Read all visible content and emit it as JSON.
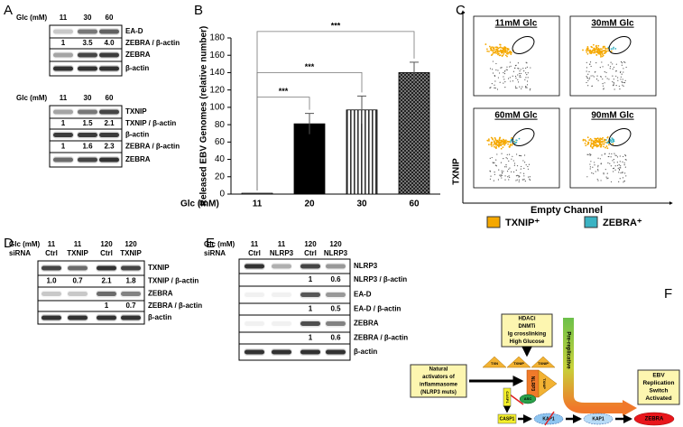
{
  "panel_labels": [
    "A",
    "B",
    "C",
    "D",
    "E",
    "F"
  ],
  "panel_a": {
    "blots": [
      {
        "header": "Glc (mM)",
        "lanes": [
          "11",
          "30",
          "60"
        ],
        "rows": [
          {
            "label": "EA-D"
          },
          {
            "label": "ZEBRA / β-actin",
            "values": [
              "1",
              "3.5",
              "4.0"
            ]
          },
          {
            "label": "ZEBRA"
          },
          {
            "label": "β-actin"
          }
        ]
      },
      {
        "header": "Glc (mM)",
        "lanes": [
          "11",
          "30",
          "60"
        ],
        "rows": [
          {
            "label": "TXNIP"
          },
          {
            "label": "TXNIP / β-actin",
            "values": [
              "1",
              "1.5",
              "2.1"
            ]
          },
          {
            "label": "β-actin"
          },
          {
            "label": "ZEBRA / β-actin",
            "values": [
              "1",
              "1.6",
              "2.3"
            ]
          },
          {
            "label": "ZEBRA"
          }
        ]
      }
    ]
  },
  "chart_data": {
    "type": "bar",
    "y_label": "Released EBV Genomes (relative number)",
    "x_label": "Glc (mM)",
    "categories": [
      "11",
      "20",
      "30",
      "60"
    ],
    "values": [
      1,
      81,
      97,
      140
    ],
    "errors": [
      0,
      12,
      16,
      12
    ],
    "colors": [
      "#ffffff",
      "#000000",
      "#ffffff",
      "#3a3a3a"
    ],
    "patterns": [
      null,
      null,
      "vertical-stripes",
      "checker"
    ],
    "significance": [
      null,
      "***",
      "***",
      "***"
    ],
    "ylim": [
      0,
      180
    ],
    "yticks": [
      0,
      20,
      40,
      60,
      80,
      100,
      120,
      140,
      160,
      180
    ]
  },
  "panel_c": {
    "titles": [
      "11mM Glc",
      "30mM Glc",
      "60mM Glc",
      "90mM Glc"
    ],
    "y_label": "TXNIP",
    "x_label": "Empty Channel",
    "legend": [
      {
        "label": "TXNIP⁺",
        "color": "#f5a800"
      },
      {
        "label": "ZEBRA⁺",
        "color": "#3bb3c3"
      }
    ]
  },
  "panel_d": {
    "glc_label": "Glc (mM)",
    "sirna_label": "siRNA",
    "glc": [
      "11",
      "11",
      "120",
      "120"
    ],
    "sirna": [
      "Ctrl",
      "TXNIP",
      "Ctrl",
      "TXNIP"
    ],
    "rows": [
      {
        "label": "TXNIP"
      },
      {
        "label": "TXNIP / β-actin",
        "values": [
          "1.0",
          "0.7",
          "2.1",
          "1.8"
        ]
      },
      {
        "label": "ZEBRA"
      },
      {
        "label": "ZEBRA / β-actin",
        "values": [
          null,
          null,
          "1",
          "0.7"
        ]
      },
      {
        "label": "β-actin"
      }
    ]
  },
  "panel_e": {
    "glc_label": "Glc (mM)",
    "sirna_label": "siRNA",
    "glc": [
      "11",
      "11",
      "120",
      "120"
    ],
    "sirna": [
      "Ctrl",
      "NLRP3",
      "Ctrl",
      "NLRP3"
    ],
    "rows": [
      {
        "label": "NLRP3"
      },
      {
        "label": "NLRP3 / β-actin",
        "values": [
          null,
          null,
          "1",
          "0.6"
        ]
      },
      {
        "label": "EA-D"
      },
      {
        "label": "EA-D / β-actin",
        "values": [
          null,
          null,
          "1",
          "0.5"
        ]
      },
      {
        "label": "ZEBRA"
      },
      {
        "label": "ZEBRA / β-actin",
        "values": [
          null,
          null,
          "1",
          "0.6"
        ]
      },
      {
        "label": "β-actin"
      }
    ]
  },
  "panel_f": {
    "stimuli": [
      "HDACi",
      "DNMTi",
      "Ig crosslinking",
      "High Glucose"
    ],
    "complex": [
      "TXN",
      "TXNIP",
      "TXNIP"
    ],
    "nlrp3": "NLRP3",
    "txnip_bound": "TXNIP",
    "asc": "ASC",
    "casp1_inactive": "CASP1",
    "activators": [
      "Natural",
      "activators of",
      "inflammasome",
      "(NLRP3 muts)"
    ],
    "pre_replicative": "Pre-replicative",
    "outcome": [
      "EBV",
      "Replication",
      "Switch",
      "Activated"
    ],
    "cascade": [
      "CASP1",
      "KAP1",
      "KAP1",
      "ZEBRA"
    ]
  }
}
